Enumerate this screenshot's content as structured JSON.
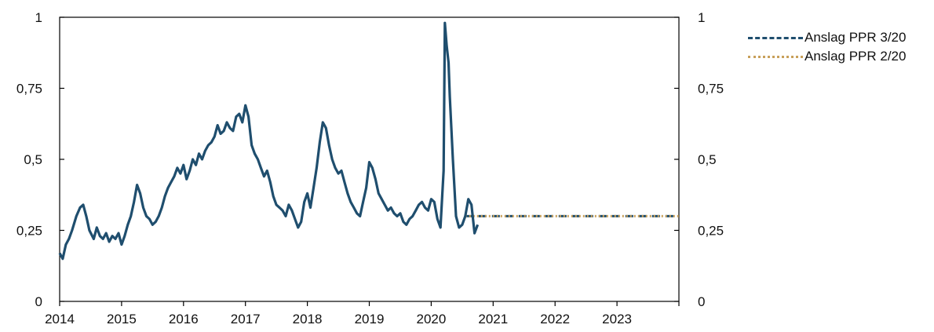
{
  "chart_data": {
    "type": "line",
    "title": "",
    "xlabel": "",
    "ylabel": "",
    "xlim": [
      2014.0,
      2024.0
    ],
    "ylim": [
      0,
      1
    ],
    "x_ticks": [
      "2014",
      "2015",
      "2016",
      "2017",
      "2018",
      "2019",
      "2020",
      "2021",
      "2022",
      "2023"
    ],
    "y_ticks_left": [
      "0",
      "0,25",
      "0,5",
      "0,75",
      "1"
    ],
    "y_ticks_right": [
      "0",
      "0,25",
      "0,5",
      "0,75",
      "1"
    ],
    "grid": false,
    "legend_position": "top-right outside",
    "colors": {
      "historical": "#1f4e6e",
      "ppr_3_20": "#1f4e6e",
      "ppr_2_20": "#c8a05a"
    },
    "series": [
      {
        "key": "historical",
        "style": "solid",
        "x": [
          2014.0,
          2014.05,
          2014.1,
          2014.15,
          2014.2,
          2014.27,
          2014.33,
          2014.38,
          2014.43,
          2014.48,
          2014.55,
          2014.6,
          2014.65,
          2014.7,
          2014.75,
          2014.8,
          2014.85,
          2014.9,
          2014.95,
          2015.0,
          2015.05,
          2015.1,
          2015.15,
          2015.2,
          2015.25,
          2015.3,
          2015.35,
          2015.4,
          2015.45,
          2015.5,
          2015.55,
          2015.6,
          2015.65,
          2015.7,
          2015.75,
          2015.8,
          2015.85,
          2015.9,
          2015.95,
          2016.0,
          2016.05,
          2016.1,
          2016.15,
          2016.2,
          2016.25,
          2016.3,
          2016.35,
          2016.4,
          2016.45,
          2016.5,
          2016.55,
          2016.6,
          2016.65,
          2016.7,
          2016.75,
          2016.8,
          2016.85,
          2016.9,
          2016.95,
          2017.0,
          2017.05,
          2017.1,
          2017.15,
          2017.2,
          2017.25,
          2017.3,
          2017.35,
          2017.4,
          2017.45,
          2017.5,
          2017.55,
          2017.6,
          2017.65,
          2017.7,
          2017.75,
          2017.8,
          2017.85,
          2017.9,
          2017.95,
          2018.0,
          2018.05,
          2018.1,
          2018.15,
          2018.2,
          2018.25,
          2018.3,
          2018.35,
          2018.4,
          2018.45,
          2018.5,
          2018.55,
          2018.6,
          2018.65,
          2018.7,
          2018.75,
          2018.8,
          2018.85,
          2018.9,
          2018.95,
          2019.0,
          2019.05,
          2019.1,
          2019.15,
          2019.2,
          2019.25,
          2019.3,
          2019.35,
          2019.4,
          2019.45,
          2019.5,
          2019.55,
          2019.6,
          2019.65,
          2019.7,
          2019.75,
          2019.8,
          2019.85,
          2019.9,
          2019.95,
          2020.0,
          2020.05,
          2020.1,
          2020.15,
          2020.2,
          2020.22,
          2020.25,
          2020.28,
          2020.3,
          2020.35,
          2020.4,
          2020.45,
          2020.5,
          2020.55,
          2020.6,
          2020.65,
          2020.7,
          2020.75
        ],
        "y": [
          0.17,
          0.15,
          0.2,
          0.22,
          0.25,
          0.3,
          0.33,
          0.34,
          0.3,
          0.25,
          0.22,
          0.26,
          0.23,
          0.22,
          0.24,
          0.21,
          0.23,
          0.22,
          0.24,
          0.2,
          0.23,
          0.27,
          0.3,
          0.35,
          0.41,
          0.38,
          0.33,
          0.3,
          0.29,
          0.27,
          0.28,
          0.3,
          0.33,
          0.37,
          0.4,
          0.42,
          0.44,
          0.47,
          0.45,
          0.48,
          0.43,
          0.46,
          0.5,
          0.48,
          0.52,
          0.5,
          0.53,
          0.55,
          0.56,
          0.58,
          0.62,
          0.59,
          0.6,
          0.63,
          0.61,
          0.6,
          0.65,
          0.66,
          0.63,
          0.69,
          0.65,
          0.55,
          0.52,
          0.5,
          0.47,
          0.44,
          0.46,
          0.42,
          0.37,
          0.34,
          0.33,
          0.32,
          0.3,
          0.34,
          0.32,
          0.29,
          0.26,
          0.28,
          0.35,
          0.38,
          0.33,
          0.4,
          0.47,
          0.56,
          0.63,
          0.61,
          0.55,
          0.5,
          0.47,
          0.45,
          0.46,
          0.42,
          0.38,
          0.35,
          0.33,
          0.31,
          0.3,
          0.35,
          0.4,
          0.49,
          0.47,
          0.43,
          0.38,
          0.36,
          0.34,
          0.32,
          0.33,
          0.31,
          0.3,
          0.31,
          0.28,
          0.27,
          0.29,
          0.3,
          0.32,
          0.34,
          0.35,
          0.33,
          0.32,
          0.36,
          0.35,
          0.29,
          0.26,
          0.46,
          0.98,
          0.9,
          0.84,
          0.72,
          0.5,
          0.3,
          0.26,
          0.27,
          0.3,
          0.36,
          0.34,
          0.24,
          0.27
        ]
      },
      {
        "key": "ppr_3_20",
        "name": "Anslag PPR 3/20",
        "style": "dashed",
        "x": [
          2020.55,
          2024.0
        ],
        "y": [
          0.3,
          0.3
        ]
      },
      {
        "key": "ppr_2_20",
        "name": "Anslag PPR 2/20",
        "style": "dotted",
        "x": [
          2020.55,
          2024.0
        ],
        "y": [
          0.3,
          0.3
        ]
      }
    ]
  }
}
